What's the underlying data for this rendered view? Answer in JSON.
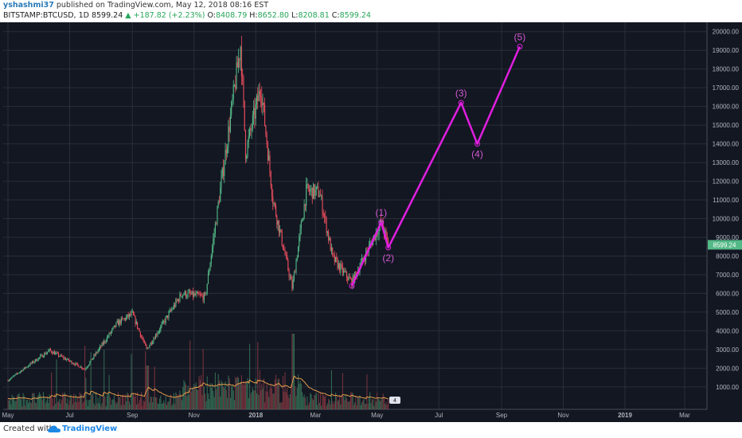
{
  "header": {
    "username": "yshashmi37",
    "published_text": "published on TradingView.com, May 12, 2018 08:16 EST",
    "symbol": "BITSTAMP:BTCUSD, 1D",
    "last": "8599.24",
    "change": "▲ +187.82 (+2.23%)",
    "open_label": "O:",
    "open": "8408.79",
    "high_label": "H:",
    "high": "8652.80",
    "low_label": "L:",
    "low": "8208.81",
    "close_label": "C:",
    "close": "8599.24"
  },
  "footer": {
    "created_with": "Created with",
    "brand": "TradingView"
  },
  "chart_data": {
    "type": "candlestick",
    "y_axis": {
      "ticks": [
        "1000.00",
        "2000.00",
        "3000.00",
        "4000.00",
        "5000.00",
        "6000.00",
        "7000.00",
        "8000.00",
        "9000.00",
        "10000.00",
        "11000.00",
        "12000.00",
        "13000.00",
        "14000.00",
        "15000.00",
        "16000.00",
        "17000.00",
        "18000.00",
        "19000.00",
        "20000.00"
      ],
      "range": [
        -200,
        20500
      ],
      "last_price_label": "8599.24"
    },
    "x_axis": {
      "ticks": [
        "May",
        "Jul",
        "Sep",
        "Nov",
        "2018",
        "Mar",
        "May",
        "Jul",
        "Sep",
        "Nov",
        "2019",
        "Mar"
      ]
    },
    "price_path": [
      [
        "2017-05-01",
        1350
      ],
      [
        "2017-05-25",
        2300
      ],
      [
        "2017-06-11",
        2950
      ],
      [
        "2017-07-16",
        1950
      ],
      [
        "2017-08-17",
        4400
      ],
      [
        "2017-09-01",
        4900
      ],
      [
        "2017-09-15",
        3000
      ],
      [
        "2017-10-20",
        6000
      ],
      [
        "2017-11-12",
        5800
      ],
      [
        "2017-12-17",
        19300
      ],
      [
        "2017-12-22",
        13500
      ],
      [
        "2018-01-06",
        17100
      ],
      [
        "2018-01-18",
        11000
      ],
      [
        "2018-02-06",
        6300
      ],
      [
        "2018-02-20",
        11500
      ],
      [
        "2018-03-05",
        11400
      ],
      [
        "2018-03-18",
        7900
      ],
      [
        "2018-04-01",
        6900
      ],
      [
        "2018-04-06",
        6600
      ],
      [
        "2018-05-05",
        9800
      ],
      [
        "2018-05-12",
        8599
      ]
    ],
    "volume_note": "volume histogram with orange moving average",
    "volume_badge": "4",
    "wave_labels": [
      {
        "label": "(1)",
        "date": "2018-05-05",
        "value": 9800
      },
      {
        "label": "(2)",
        "date": "2018-05-12",
        "value": 8450
      },
      {
        "label": "(3)",
        "date": "2018-07-23",
        "value": 16200
      },
      {
        "label": "(4)",
        "date": "2018-08-08",
        "value": 14000
      },
      {
        "label": "(5)",
        "date": "2018-09-19",
        "value": 19200
      }
    ],
    "wave_path": [
      [
        "2018-04-06",
        6400
      ],
      [
        "2018-05-05",
        9800
      ],
      [
        "2018-05-12",
        8450
      ],
      [
        "2018-07-23",
        16200
      ],
      [
        "2018-08-08",
        14000
      ],
      [
        "2018-09-19",
        19200
      ]
    ],
    "colors": {
      "background": "#131722",
      "grid": "#2a2e39",
      "up": "#53b987",
      "down": "#eb4d5c",
      "wave": "#e01ee0",
      "wave_label": "#d058d0",
      "axis_text": "#b2b5be",
      "last_price": "#53b987",
      "ma": "#e39a4a"
    }
  }
}
